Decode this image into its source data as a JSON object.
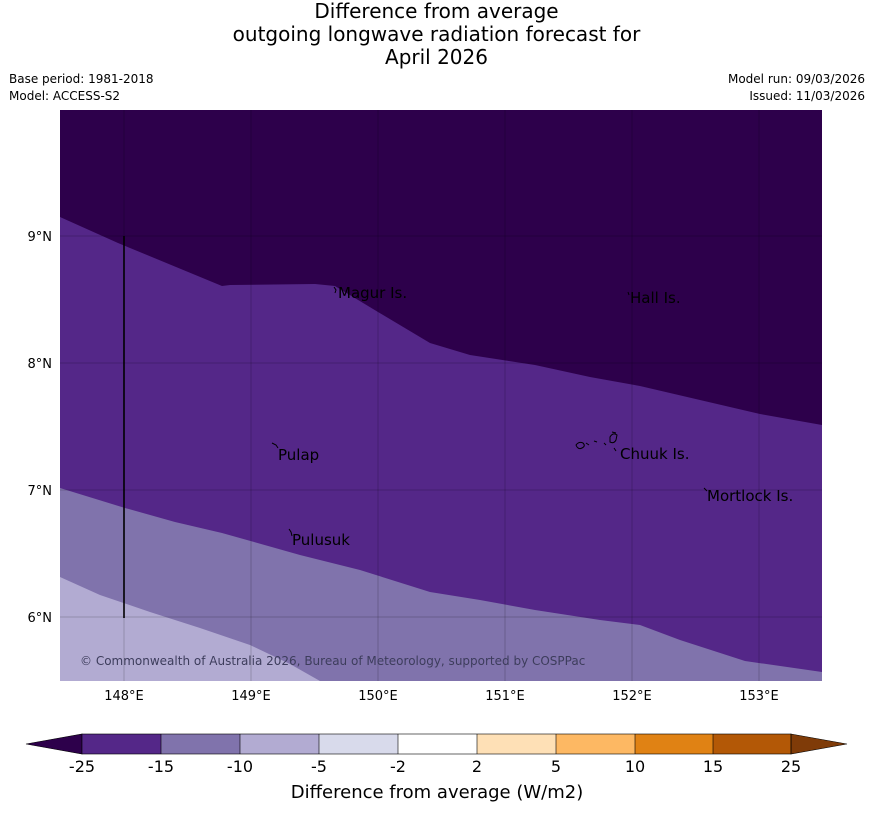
{
  "header": {
    "title_lines": [
      "Difference from average",
      "outgoing longwave radiation forecast for",
      "April 2026"
    ],
    "base_period": "Base period: 1981-2018",
    "model": "Model: ACCESS-S2",
    "model_run": "Model run: 09/03/2026",
    "issued": "Issued: 11/03/2026"
  },
  "map": {
    "lon_ticks": [
      "148°E",
      "149°E",
      "150°E",
      "151°E",
      "152°E",
      "153°E"
    ],
    "lat_ticks": [
      "9°N",
      "8°N",
      "7°N",
      "6°N"
    ],
    "places": [
      {
        "name": "Magur Is.",
        "lon": 149.67,
        "lat": 8.53
      },
      {
        "name": "Hall Is.",
        "lon": 151.98,
        "lat": 8.5
      },
      {
        "name": "Pulap",
        "lon": 149.2,
        "lat": 7.27
      },
      {
        "name": "Chuuk Is.",
        "lon": 151.85,
        "lat": 7.3
      },
      {
        "name": "Mortlock Is.",
        "lon": 152.58,
        "lat": 6.95
      },
      {
        "name": "Pulusuk",
        "lon": 149.32,
        "lat": 6.62
      }
    ],
    "copyright": "© Commonwealth of Australia 2026, Bureau of Meteorology, supported by COSPPac",
    "colors": {
      "below_-25": "#2d004b",
      "-25_to_-15": "#542788",
      "-15_to_-10": "#8073ac",
      "-10_to_-5": "#b2abd2"
    }
  },
  "legend": {
    "title": "Difference from average (W/m2)",
    "tick_labels": [
      "-25",
      "-15",
      "-10",
      "-5",
      "-2",
      "2",
      "5",
      "10",
      "15",
      "25"
    ],
    "colors": {
      "under": "#2d004b",
      "bins": [
        "#542788",
        "#8073ac",
        "#b2abd2",
        "#d8daeb",
        "#ffffff",
        "#fee0b6",
        "#fdb863",
        "#e08214",
        "#b35806"
      ],
      "over": "#7f3b08"
    }
  }
}
